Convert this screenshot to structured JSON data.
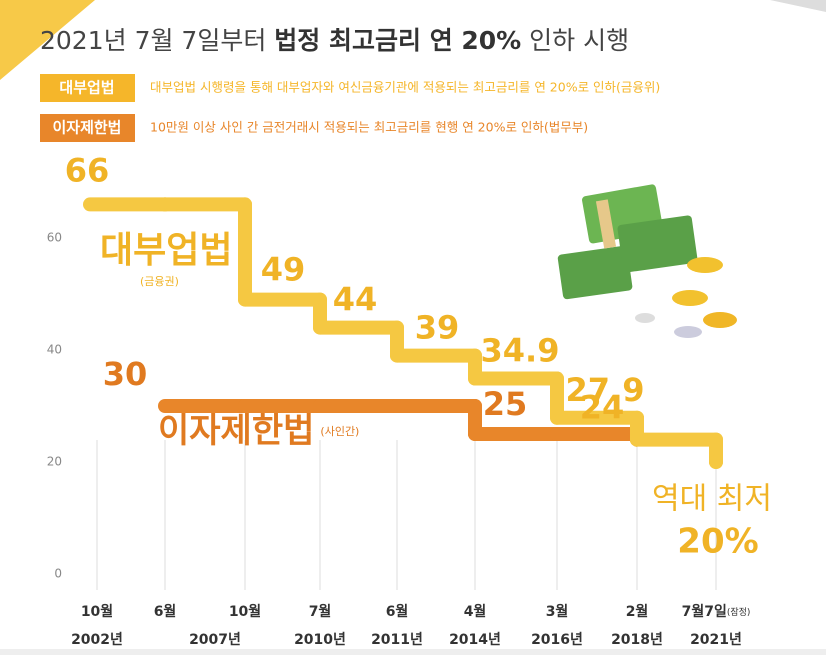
{
  "chart_data": {
    "type": "step",
    "title": [
      "2021년 7월 7일부터 ",
      "법정 최고금리 연 20%",
      " 인하 시행"
    ],
    "legend": [
      {
        "name": "대부업법",
        "description": "대부업법 시행령을 통해 대부업자와 여신금융기관에 적용되는 최고금리를 연 20%로 인하(금융위)",
        "color": "#f5b62a"
      },
      {
        "name": "이자제한법",
        "description": "10만원 이상 사인 간 금전거래시 적용되는 최고금리를 현행 연 20%로 인하(법무부)",
        "color": "#e8862a"
      }
    ],
    "categories": [
      "10월",
      "6월",
      "10월",
      "7월",
      "6월",
      "4월",
      "3월",
      "2월",
      "7월7일"
    ],
    "category_notes": [
      null,
      null,
      null,
      null,
      null,
      null,
      null,
      null,
      "(잠정)"
    ],
    "years": [
      "2002년",
      "2007년",
      null,
      "2010년",
      "2011년",
      "2014년",
      "2016년",
      "2018년",
      "2021년"
    ],
    "series": [
      {
        "name": "대부업법",
        "note": "(금융권)",
        "color": "#f5c842",
        "label_color": "#f0b326",
        "values": [
          66,
          66,
          49,
          44,
          39,
          34.9,
          27.9,
          24,
          20
        ],
        "value_labels": [
          "66",
          null,
          "49",
          "44",
          "39",
          "34.9",
          "27.9",
          "24",
          "20%"
        ]
      },
      {
        "name": "이자제한법",
        "note": "(사인간)",
        "color": "#e8862a",
        "label_color": "#e07a20",
        "values": [
          null,
          30,
          30,
          30,
          30,
          25,
          25,
          24,
          null
        ],
        "value_labels": [
          null,
          "30",
          null,
          null,
          null,
          "25",
          null,
          null,
          null
        ]
      }
    ],
    "annotation": "역대 최저",
    "ylim": [
      0,
      70
    ],
    "yticks": [
      0,
      20,
      40,
      60
    ]
  }
}
